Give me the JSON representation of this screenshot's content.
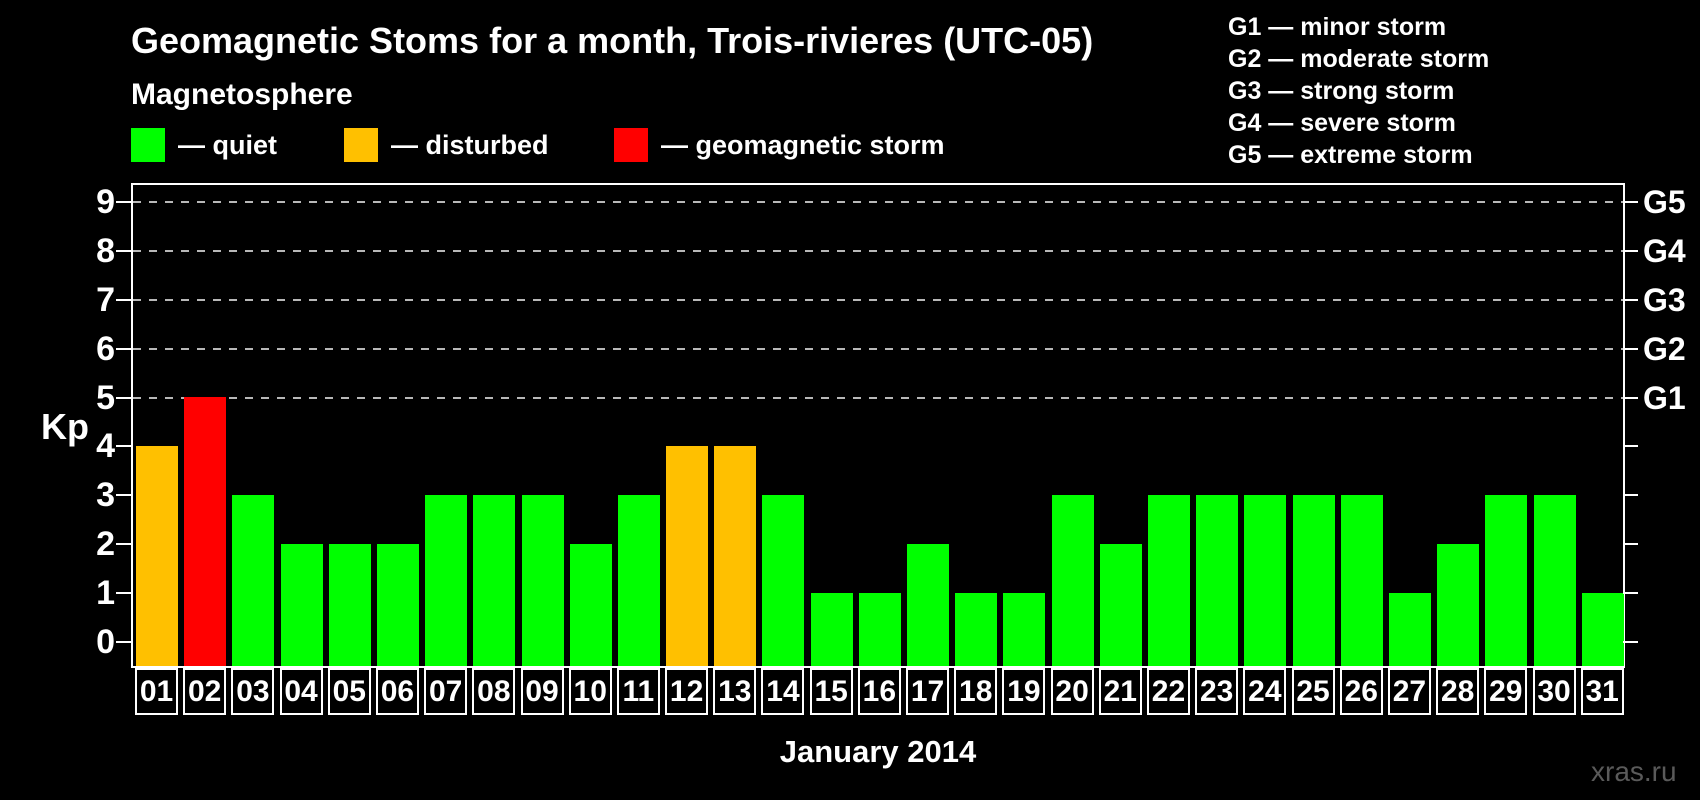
{
  "title": "Geomagnetic Stoms for a month, Trois-rivieres (UTC-05)",
  "subtitle": "Magnetosphere",
  "legend": {
    "items": [
      {
        "name": "quiet",
        "label": "— quiet",
        "color": "#00ff00"
      },
      {
        "name": "disturbed",
        "label": "— disturbed",
        "color": "#ffc000"
      },
      {
        "name": "geomagnetic-storm",
        "label": "— geomagnetic storm",
        "color": "#ff0000"
      }
    ]
  },
  "storm_scale_legend": [
    "G1 — minor storm",
    "G2 — moderate storm",
    "G3 — strong storm",
    "G4 — severe storm",
    "G5 — extreme storm"
  ],
  "watermark": "xras.ru",
  "chart_data": {
    "type": "bar",
    "title": "Geomagnetic Stoms for a month, Trois-rivieres (UTC-05)",
    "xlabel": "January 2014",
    "ylabel": "Kp",
    "ylim": [
      0,
      9
    ],
    "y_ticks": [
      0,
      1,
      2,
      3,
      4,
      5,
      6,
      7,
      8,
      9
    ],
    "gridlines_at": [
      5,
      6,
      7,
      8,
      9
    ],
    "grid": "dashed-horizontal-at-storm-levels",
    "legend_position": "top",
    "categories": [
      "01",
      "02",
      "03",
      "04",
      "05",
      "06",
      "07",
      "08",
      "09",
      "10",
      "11",
      "12",
      "13",
      "14",
      "15",
      "16",
      "17",
      "18",
      "19",
      "20",
      "21",
      "22",
      "23",
      "24",
      "25",
      "26",
      "27",
      "28",
      "29",
      "30",
      "31"
    ],
    "values": [
      4,
      5,
      3,
      2,
      2,
      2,
      3,
      3,
      3,
      2,
      3,
      4,
      4,
      3,
      1,
      1,
      2,
      1,
      1,
      3,
      2,
      3,
      3,
      3,
      3,
      3,
      1,
      2,
      3,
      3,
      1
    ],
    "bar_colors": [
      "disturbed",
      "storm",
      "quiet",
      "quiet",
      "quiet",
      "quiet",
      "quiet",
      "quiet",
      "quiet",
      "quiet",
      "quiet",
      "disturbed",
      "disturbed",
      "quiet",
      "quiet",
      "quiet",
      "quiet",
      "quiet",
      "quiet",
      "quiet",
      "quiet",
      "quiet",
      "quiet",
      "quiet",
      "quiet",
      "quiet",
      "quiet",
      "quiet",
      "quiet",
      "quiet",
      "quiet"
    ],
    "palette": {
      "quiet": "#00ff00",
      "disturbed": "#ffc000",
      "storm": "#ff0000"
    },
    "right_axis_levels": [
      {
        "label": "G1",
        "kp": 5
      },
      {
        "label": "G2",
        "kp": 6
      },
      {
        "label": "G3",
        "kp": 7
      },
      {
        "label": "G4",
        "kp": 8
      },
      {
        "label": "G5",
        "kp": 9
      }
    ]
  }
}
